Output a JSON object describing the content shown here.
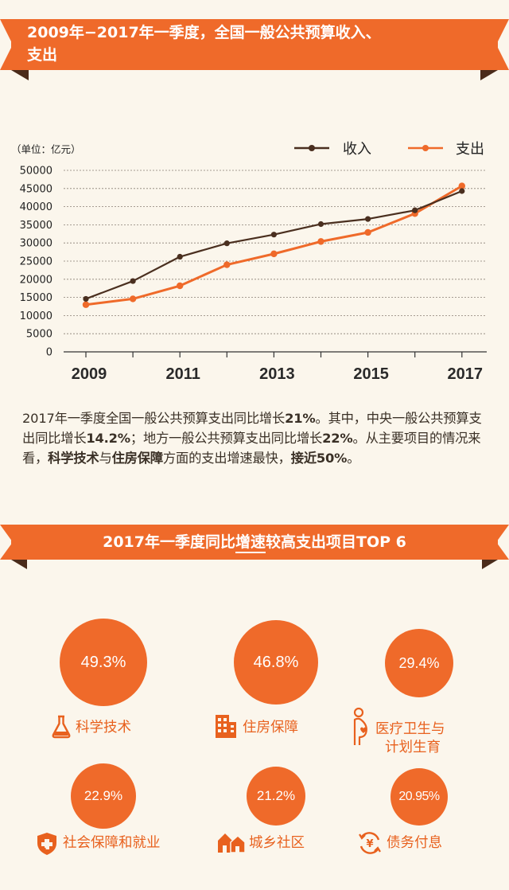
{
  "header": {
    "title_line1": "2009年−2017年一季度，全国一般公共预算收入、",
    "title_line2": "支出"
  },
  "chart_data": {
    "type": "line",
    "unit_label": "（单位：亿元）",
    "x": [
      2009,
      2010,
      2011,
      2012,
      2013,
      2014,
      2015,
      2016,
      2017
    ],
    "x_tick_labels": [
      "2009",
      "2011",
      "2013",
      "2015",
      "2017"
    ],
    "y_ticks": [
      "0",
      "5000",
      "10000",
      "15000",
      "20000",
      "25000",
      "30000",
      "35000",
      "40000",
      "45000",
      "50000"
    ],
    "ylim": [
      0,
      50000
    ],
    "grid": true,
    "legend_position": "top-right",
    "series": [
      {
        "name": "收入",
        "color": "#4a2f1f",
        "values": [
          14600,
          19500,
          26200,
          29900,
          32300,
          35200,
          36600,
          39000,
          44300
        ]
      },
      {
        "name": "支出",
        "color": "#ef6a2a",
        "values": [
          13000,
          14600,
          18200,
          24000,
          27000,
          30400,
          32900,
          38100,
          45700
        ]
      }
    ]
  },
  "summary": {
    "s1": "2017年一季度全国一般公共预算支出同比增长",
    "b1": "21%",
    "s2": "。其中，中央一般公共预算支出同比增长",
    "b2": "14.2%",
    "s3": "；地方一般公共预算支出同比增长",
    "b3": "22%",
    "s4": "。从主要项目的情况来看，",
    "b4": "科学技术",
    "s5": "与",
    "b5": "住房保障",
    "s6": "方面的支出增速最快，",
    "b6": "接近50%",
    "s7": "。"
  },
  "top6": {
    "title_pre": "2017年一季度同比",
    "title_underlined": "增速",
    "title_post": "较高支出项目TOP 6",
    "items": [
      {
        "value": "49.3%",
        "label": "科学技术",
        "icon": "flask-icon"
      },
      {
        "value": "46.8%",
        "label": "住房保障",
        "icon": "building-icon"
      },
      {
        "value": "29.4%",
        "label_line1": "医疗卫生与",
        "label_line2": "计划生育",
        "icon": "pregnant-woman-icon"
      },
      {
        "value": "22.9%",
        "label": "社会保障和就业",
        "icon": "medical-shield-icon"
      },
      {
        "value": "21.2%",
        "label": "城乡社区",
        "icon": "houses-icon"
      },
      {
        "value": "20.95%",
        "label": "债务付息",
        "icon": "yen-cycle-icon"
      }
    ]
  }
}
